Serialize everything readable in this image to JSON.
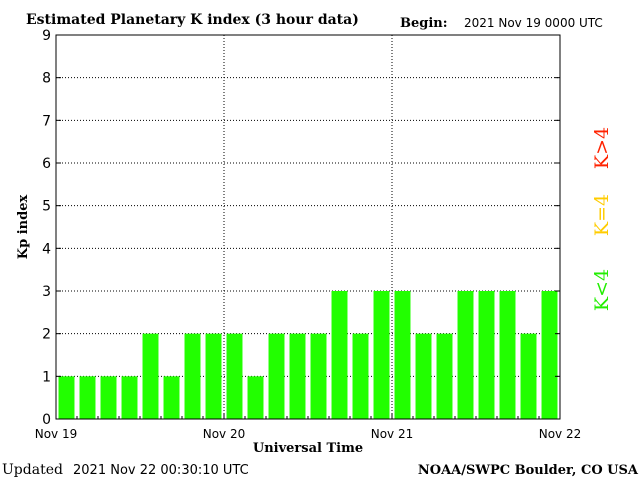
{
  "chart_data": {
    "type": "bar",
    "title": "Estimated Planetary K index (3 hour data)",
    "begin_label": "Begin:",
    "begin_value": "2021 Nov 19 0000 UTC",
    "xlabel": "Universal Time",
    "ylabel": "Kp index",
    "ylim": [
      0,
      9
    ],
    "yticks": [
      "0",
      "1",
      "2",
      "3",
      "4",
      "5",
      "6",
      "7",
      "8",
      "9"
    ],
    "xticks": [
      "Nov 19",
      "Nov 20",
      "Nov 21",
      "Nov 22"
    ],
    "grid": true,
    "bar_color": "#22ff00",
    "values": [
      1,
      1,
      1,
      1,
      2,
      1,
      2,
      2,
      2,
      1,
      2,
      2,
      2,
      3,
      2,
      3,
      3,
      2,
      2,
      3,
      3,
      3,
      2,
      3
    ],
    "legend": [
      {
        "label": "K<4",
        "color": "#22ee00"
      },
      {
        "label": "K=4",
        "color": "#ffcc00"
      },
      {
        "label": "K>4",
        "color": "#ff2200"
      }
    ]
  },
  "footer": {
    "updated_label": "Updated",
    "updated_value": "2021 Nov 22 00:30:10 UTC",
    "source": "NOAA/SWPC Boulder, CO USA"
  }
}
